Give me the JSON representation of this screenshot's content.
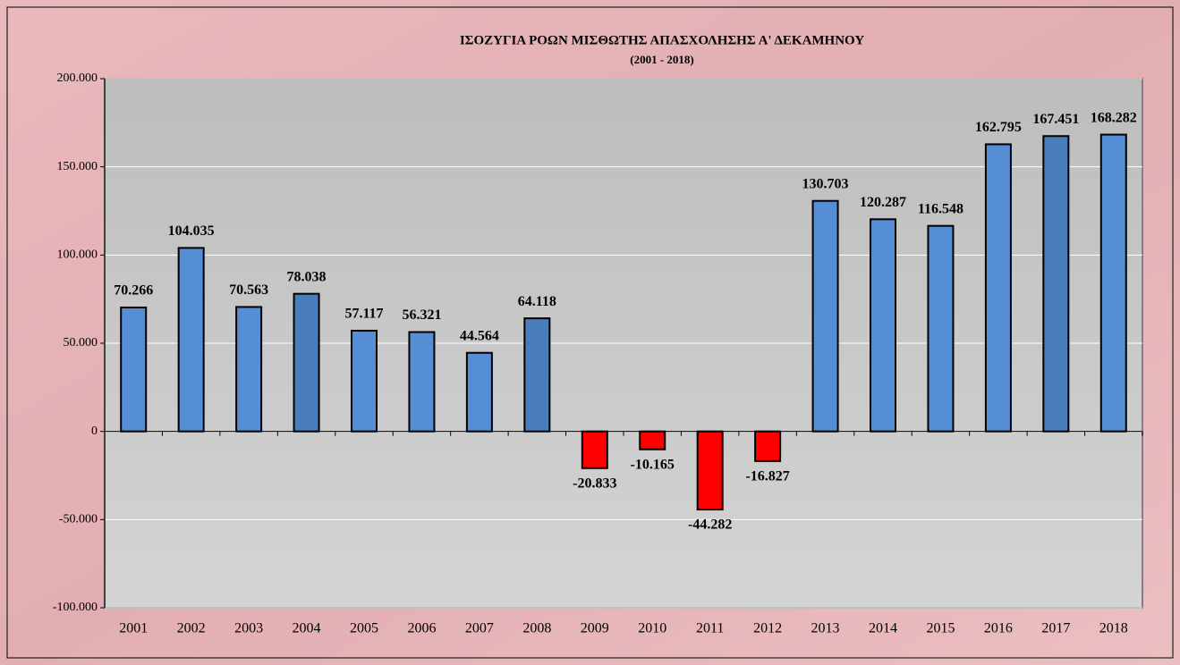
{
  "chart_data": {
    "type": "bar",
    "title": "ΙΣΟΖΥΓΙΑ ΡΟΩΝ ΜΙΣΘΩΤΗΣ ΑΠΑΣΧΟΛΗΣΗΣ Α' ΔΕΚΑΜΗΝΟΥ",
    "subtitle": "(2001 - 2018)",
    "categories": [
      "2001",
      "2002",
      "2003",
      "2004",
      "2005",
      "2006",
      "2007",
      "2008",
      "2009",
      "2010",
      "2011",
      "2012",
      "2013",
      "2014",
      "2015",
      "2016",
      "2017",
      "2018"
    ],
    "values": [
      70266,
      104035,
      70563,
      78038,
      57117,
      56321,
      44564,
      64118,
      -20833,
      -10165,
      -44282,
      -16827,
      130703,
      120287,
      116548,
      162795,
      167451,
      168282
    ],
    "value_labels": [
      "70.266",
      "104.035",
      "70.563",
      "78.038",
      "57.117",
      "56.321",
      "44.564",
      "64.118",
      "-20.833",
      "-10.165",
      "-44.282",
      "-16.827",
      "130.703",
      "120.287",
      "116.548",
      "162.795",
      "167.451",
      "168.282"
    ],
    "colors": [
      "#558ed5",
      "#558ed5",
      "#558ed5",
      "#4a7ebb",
      "#558ed5",
      "#558ed5",
      "#558ed5",
      "#4a7ebb",
      "#ff0000",
      "#ff0000",
      "#ff0000",
      "#ff0000",
      "#558ed5",
      "#558ed5",
      "#558ed5",
      "#558ed5",
      "#4a7ebb",
      "#558ed5"
    ],
    "ylim": [
      -100000,
      200000
    ],
    "yticks": [
      {
        "value": -100000,
        "label": "-100.000"
      },
      {
        "value": -50000,
        "label": "-50.000"
      },
      {
        "value": 0,
        "label": "0"
      },
      {
        "value": 50000,
        "label": "50.000"
      },
      {
        "value": 100000,
        "label": "100.000"
      },
      {
        "value": 150000,
        "label": "150.000"
      },
      {
        "value": 200000,
        "label": "200.000"
      }
    ],
    "grid": true
  }
}
